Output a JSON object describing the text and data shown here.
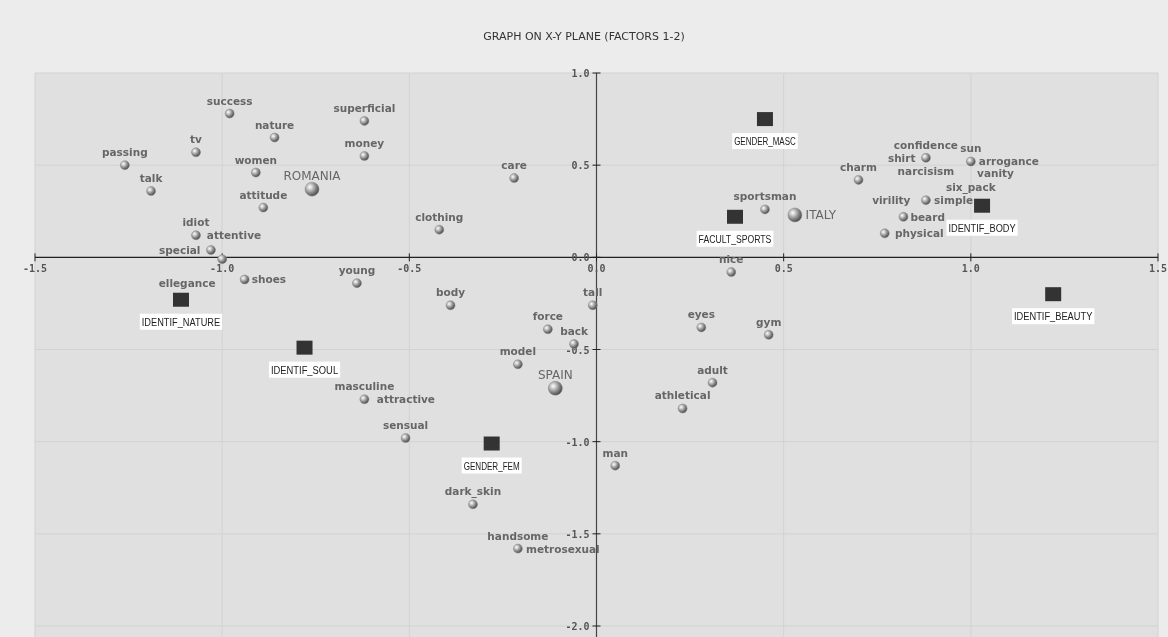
{
  "chart_data": {
    "type": "scatter",
    "title": "GRAPH ON X-Y PLANE (FACTORS 1-2)",
    "xlim": [
      -1.5,
      1.5
    ],
    "ylim": [
      -2.0,
      1.0
    ],
    "xticks": [
      {
        "value": -1.5,
        "label": "-1.5"
      },
      {
        "value": -1,
        "label": "-1.0"
      },
      {
        "value": -0.5,
        "label": "-0.5"
      },
      {
        "value": 0,
        "label": "0.0"
      },
      {
        "value": 0.5,
        "label": "0.5"
      },
      {
        "value": 1,
        "label": "1.0"
      },
      {
        "value": 1.5,
        "label": "1.5"
      }
    ],
    "yticks": [
      {
        "value": -2,
        "label": "-2.0"
      },
      {
        "value": -1.5,
        "label": "-1.5"
      },
      {
        "value": -1,
        "label": "-1.0"
      },
      {
        "value": -0.5,
        "label": "-0.5"
      },
      {
        "value": 0,
        "label": "0.0"
      },
      {
        "value": 0.5,
        "label": "0.5"
      },
      {
        "value": 1,
        "label": "1.0"
      }
    ],
    "grid": true,
    "marker": "circle",
    "series": [
      {
        "color": "#8a8a8a",
        "x": [
          -0.98,
          -0.86,
          -0.62,
          -1.07,
          -0.62,
          -1.26,
          -0.91,
          -0.22,
          -1.19,
          -0.89,
          -0.42,
          -1.07,
          -1.03,
          -1.0,
          -0.94,
          -0.64,
          -0.39,
          -0.01,
          -0.13,
          -0.06,
          -0.21,
          -0.62,
          -0.51,
          -0.33,
          -0.21,
          0.88,
          1.0,
          0.7,
          0.45,
          0.88,
          0.82,
          0.77,
          0.36,
          0.28,
          0.46,
          0.31,
          0.23,
          0.05
        ],
        "values": [
          0.78,
          0.65,
          0.74,
          0.57,
          0.55,
          0.5,
          0.46,
          0.43,
          0.36,
          0.27,
          0.15,
          0.12,
          0.04,
          -0.01,
          -0.12,
          -0.14,
          -0.26,
          -0.26,
          -0.39,
          -0.47,
          -0.58,
          -0.77,
          -0.98,
          -1.34,
          -1.58,
          0.54,
          0.52,
          0.42,
          0.26,
          0.31,
          0.22,
          0.13,
          -0.08,
          -0.38,
          -0.42,
          -0.68,
          -0.82,
          -1.13
        ]
      },
      {
        "color": "#8a8a8a",
        "x": [
          -0.76,
          0.53,
          -0.11
        ],
        "values": [
          0.37,
          0.23,
          -0.71
        ]
      },
      {
        "color": "#333333",
        "marker": "square",
        "x": [
          -1.11,
          -0.78,
          -0.28,
          0.45,
          0.37,
          1.03,
          1.22
        ],
        "values": [
          -0.23,
          -0.49,
          -1.01,
          0.75,
          0.22,
          0.28,
          -0.2
        ]
      }
    ],
    "annotations": [
      {
        "text": "success",
        "x": -0.98,
        "y": 0.78
      },
      {
        "text": "nature",
        "x": -0.86,
        "y": 0.65
      },
      {
        "text": "superficial",
        "x": -0.62,
        "y": 0.74
      },
      {
        "text": "tv",
        "x": -1.07,
        "y": 0.57
      },
      {
        "text": "money",
        "x": -0.62,
        "y": 0.55
      },
      {
        "text": "passing",
        "x": -1.26,
        "y": 0.5
      },
      {
        "text": "women",
        "x": -0.91,
        "y": 0.46
      },
      {
        "text": "care",
        "x": -0.22,
        "y": 0.43
      },
      {
        "text": "talk",
        "x": -1.19,
        "y": 0.36
      },
      {
        "text": "attitude",
        "x": -0.89,
        "y": 0.27
      },
      {
        "text": "clothing",
        "x": -0.42,
        "y": 0.15
      },
      {
        "text": "idiot",
        "x": -1.07,
        "y": 0.12
      },
      {
        "text": "attentive",
        "x": -1.07,
        "y": 0.12
      },
      {
        "text": "special",
        "x": -1.03,
        "y": 0.04
      },
      {
        "text": "ellegance",
        "x": -1.0,
        "y": -0.01
      },
      {
        "text": "shoes",
        "x": -0.94,
        "y": -0.12
      },
      {
        "text": "young",
        "x": -0.64,
        "y": -0.14
      },
      {
        "text": "body",
        "x": -0.39,
        "y": -0.26
      },
      {
        "text": "tall",
        "x": -0.01,
        "y": -0.26
      },
      {
        "text": "force",
        "x": -0.13,
        "y": -0.39
      },
      {
        "text": "back",
        "x": -0.06,
        "y": -0.47
      },
      {
        "text": "model",
        "x": -0.21,
        "y": -0.58
      },
      {
        "text": "masculine",
        "x": -0.62,
        "y": -0.77
      },
      {
        "text": "attractive",
        "x": -0.62,
        "y": -0.77
      },
      {
        "text": "sensual",
        "x": -0.51,
        "y": -0.98
      },
      {
        "text": "dark_skin",
        "x": -0.33,
        "y": -1.34
      },
      {
        "text": "handsome",
        "x": -0.21,
        "y": -1.58
      },
      {
        "text": "metrosexual",
        "x": -0.21,
        "y": -1.58
      },
      {
        "text": "confidence",
        "x": 0.88,
        "y": 0.54
      },
      {
        "text": "shirt",
        "x": 0.88,
        "y": 0.54
      },
      {
        "text": "narcisism",
        "x": 0.88,
        "y": 0.54
      },
      {
        "text": "sun",
        "x": 1.0,
        "y": 0.52
      },
      {
        "text": "arrogance",
        "x": 1.0,
        "y": 0.52
      },
      {
        "text": "vanity",
        "x": 1.0,
        "y": 0.52
      },
      {
        "text": "six_pack",
        "x": 1.0,
        "y": 0.52
      },
      {
        "text": "charm",
        "x": 0.7,
        "y": 0.42
      },
      {
        "text": "sportsman",
        "x": 0.45,
        "y": 0.26
      },
      {
        "text": "virility",
        "x": 0.88,
        "y": 0.31
      },
      {
        "text": "simple",
        "x": 0.88,
        "y": 0.31
      },
      {
        "text": "beard",
        "x": 0.82,
        "y": 0.22
      },
      {
        "text": "physical",
        "x": 0.77,
        "y": 0.13
      },
      {
        "text": "nice",
        "x": 0.36,
        "y": -0.08
      },
      {
        "text": "eyes",
        "x": 0.28,
        "y": -0.38
      },
      {
        "text": "gym",
        "x": 0.46,
        "y": -0.42
      },
      {
        "text": "adult",
        "x": 0.31,
        "y": -0.68
      },
      {
        "text": "athletical",
        "x": 0.23,
        "y": -0.82
      },
      {
        "text": "man",
        "x": 0.05,
        "y": -1.13
      },
      {
        "text": "ROMANIA",
        "x": -0.76,
        "y": 0.37
      },
      {
        "text": "ITALY",
        "x": 0.53,
        "y": 0.23
      },
      {
        "text": "SPAIN",
        "x": -0.11,
        "y": -0.71
      },
      {
        "text": "IDENTIF_NATURE",
        "x": -1.11,
        "y": -0.23
      },
      {
        "text": "IDENTIF_SOUL",
        "x": -0.78,
        "y": -0.49
      },
      {
        "text": "GENDER_FEM",
        "x": -0.28,
        "y": -1.01
      },
      {
        "text": "GENDER_MASC",
        "x": 0.45,
        "y": 0.75
      },
      {
        "text": "FACULT_SPORTS",
        "x": 0.37,
        "y": 0.22
      },
      {
        "text": "IDENTIF_BODY",
        "x": 1.03,
        "y": 0.28
      },
      {
        "text": "IDENTIF_BEAUTY",
        "x": 1.22,
        "y": -0.2
      }
    ]
  }
}
